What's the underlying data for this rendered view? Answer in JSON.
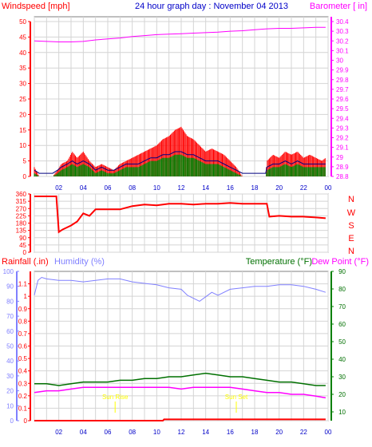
{
  "header": {
    "left_label": "Windspeed [mph]",
    "title": "24 hour graph day : November 04 2013",
    "right_label": "Barometer [ in]"
  },
  "lower_header": {
    "rainfall_label": "Rainfall (.in)",
    "humidity_label": "Humidity (%)",
    "temperature_label": "Temperature (°F)",
    "dewpoint_label": "Dew Point (°F)"
  },
  "wind_dir_letters": [
    "N",
    "W",
    "S",
    "E",
    "N"
  ],
  "sun_rise_label": "Sun Rise",
  "sun_set_label": "Sun Set",
  "colors": {
    "frame": "#808080",
    "grid": "#d4d4d4",
    "red": "#ff0000",
    "blue_title": "#0000c8",
    "magenta": "#ff00ff",
    "green": "#008000",
    "dark_green": "#007000",
    "humidity": "#8080ff",
    "navy": "#000080",
    "yellow": "#ffff00"
  },
  "chart_data": [
    {
      "type": "line",
      "name": "wind-and-barometer",
      "x_ticks": [
        "02",
        "04",
        "06",
        "08",
        "10",
        "12",
        "14",
        "16",
        "18",
        "20",
        "22",
        "00"
      ],
      "xlim": [
        0,
        24
      ],
      "y_left_ticks": [
        0,
        5,
        10,
        15,
        20,
        25,
        30,
        35,
        40,
        45,
        50
      ],
      "ylim_left": [
        0,
        50
      ],
      "y_right_ticks": [
        "28.8",
        "28.9",
        "29",
        "29.1",
        "29.2",
        "29.3",
        "29.4",
        "29.5",
        "29.6",
        "29.7",
        "29.8",
        "29.9",
        "30",
        "30.1",
        "30.2",
        "30.3",
        "30.4"
      ],
      "ylim_right": [
        28.8,
        30.4
      ],
      "grid": true,
      "barometer": {
        "x": [
          0,
          1,
          2,
          3,
          4,
          5,
          6,
          7,
          8,
          9,
          10,
          11,
          12,
          13,
          14,
          15,
          16,
          17,
          18,
          19,
          20,
          21,
          22,
          23,
          23.8
        ],
        "y": [
          30.2,
          30.195,
          30.19,
          30.19,
          30.195,
          30.21,
          30.22,
          30.23,
          30.245,
          30.255,
          30.265,
          30.27,
          30.275,
          30.28,
          30.285,
          30.29,
          30.3,
          30.305,
          30.315,
          30.325,
          30.33,
          30.33,
          30.335,
          30.34,
          30.34
        ]
      },
      "wind_gust": {
        "x": [
          0,
          0.4,
          0.6,
          1.5,
          1.9,
          2.2,
          2.7,
          3.1,
          3.5,
          4.0,
          4.5,
          5.0,
          5.5,
          6.0,
          6.5,
          7.0,
          7.5,
          8.0,
          8.5,
          9.0,
          9.5,
          10.0,
          10.5,
          11.0,
          11.5,
          12.0,
          12.5,
          13.0,
          13.5,
          14.0,
          14.5,
          15.0,
          15.5,
          16.0,
          16.5,
          17.0,
          18.0,
          18.9,
          19.0,
          19.5,
          20.0,
          20.5,
          21.0,
          21.5,
          22.0,
          22.5,
          23.0,
          23.5,
          23.8
        ],
        "y": [
          3,
          0,
          0,
          0,
          2,
          4,
          5,
          8,
          6,
          8,
          5,
          3,
          4,
          3,
          2,
          4,
          5,
          6,
          7,
          8,
          9,
          10,
          12,
          13,
          15,
          16,
          13,
          12,
          10,
          8,
          9,
          8,
          7,
          5,
          3,
          0,
          0,
          0,
          5,
          7,
          6,
          8,
          7,
          8,
          6,
          7,
          6,
          5,
          6
        ]
      },
      "wind_avg": {
        "x": [
          0,
          0.4,
          0.6,
          1.5,
          1.9,
          2.2,
          2.7,
          3.1,
          3.5,
          4.0,
          4.5,
          5.0,
          5.5,
          6.0,
          6.5,
          7.0,
          7.5,
          8.0,
          8.5,
          9.0,
          9.5,
          10.0,
          10.5,
          11.0,
          11.5,
          12.0,
          12.5,
          13.0,
          13.5,
          14.0,
          14.5,
          15.0,
          15.5,
          16.0,
          16.5,
          17.0,
          18.0,
          18.9,
          19.0,
          19.5,
          20.0,
          20.5,
          21.0,
          21.5,
          22.0,
          22.5,
          23.0,
          23.5,
          23.8
        ],
        "y": [
          1,
          0,
          0,
          0,
          1,
          2,
          3,
          4,
          3,
          4,
          3,
          1,
          2,
          1,
          1,
          2,
          3,
          3,
          3,
          4,
          5,
          5,
          6,
          6,
          7,
          7,
          6,
          6,
          5,
          4,
          4,
          4,
          3,
          2,
          1,
          0,
          0,
          0,
          2,
          3,
          3,
          4,
          3,
          4,
          3,
          3,
          3,
          3,
          3
        ]
      }
    },
    {
      "type": "line",
      "name": "wind-direction",
      "y_left_ticks": [
        0,
        45,
        90,
        135,
        180,
        225,
        270,
        315,
        360
      ],
      "ylim": [
        0,
        360
      ],
      "x": [
        0,
        1.8,
        2.0,
        2.3,
        3.0,
        3.5,
        4.0,
        4.5,
        5.0,
        6.0,
        7.0,
        8.0,
        9.0,
        10.0,
        11.0,
        12.0,
        13.0,
        14.0,
        15.0,
        16.0,
        17.0,
        18.0,
        19.0,
        19.2,
        20.0,
        21.0,
        22.0,
        23.0,
        23.8
      ],
      "y": [
        345,
        345,
        125,
        140,
        165,
        190,
        240,
        225,
        265,
        265,
        265,
        285,
        295,
        290,
        300,
        300,
        295,
        300,
        300,
        305,
        300,
        300,
        300,
        220,
        225,
        220,
        220,
        215,
        210
      ]
    },
    {
      "type": "line",
      "name": "rain-humidity-temperature",
      "x_ticks": [
        "02",
        "04",
        "06",
        "08",
        "10",
        "12",
        "14",
        "16",
        "18",
        "20",
        "22",
        "00"
      ],
      "xlim": [
        0,
        24
      ],
      "y_left_ticks": [
        "0",
        "0.1",
        "0.2",
        "0.3",
        "0.4",
        "0.5",
        "0.6",
        "0.7",
        "0.8",
        "0.9",
        "1",
        "1.1"
      ],
      "ylim_left_rain": [
        0,
        1.2
      ],
      "y_left_humidity_ticks": [
        0,
        10,
        20,
        30,
        40,
        50,
        60,
        70,
        80,
        90,
        100
      ],
      "ylim_humidity": [
        0,
        100
      ],
      "y_right_ticks": [
        10,
        20,
        30,
        40,
        50,
        60,
        70,
        80,
        90
      ],
      "ylim_right": [
        5,
        90
      ],
      "sun_rise_x": 6.6,
      "sun_set_x": 16.5,
      "humidity": {
        "x": [
          0,
          0.3,
          0.6,
          1,
          2,
          3,
          4,
          5,
          6,
          7,
          8,
          9,
          10,
          11,
          12,
          12.5,
          13,
          13.5,
          14,
          14.5,
          15,
          16,
          17,
          18,
          19,
          20,
          21,
          22,
          23,
          23.8
        ],
        "y": [
          84,
          94,
          96,
          95,
          94,
          94,
          93,
          94,
          95,
          95,
          93,
          92,
          91,
          89,
          88,
          84,
          82,
          80,
          83,
          86,
          84,
          88,
          89,
          90,
          90,
          91,
          91,
          90,
          88,
          86
        ]
      },
      "temperature": {
        "x": [
          0,
          1,
          2,
          3,
          4,
          5,
          6,
          7,
          8,
          9,
          10,
          11,
          12,
          13,
          14,
          15,
          16,
          17,
          18,
          19,
          20,
          21,
          22,
          23,
          23.8
        ],
        "y": [
          26,
          26,
          25,
          26,
          27,
          27,
          27,
          28,
          28,
          29,
          29,
          30,
          30,
          31,
          32,
          31,
          30,
          30,
          29,
          28,
          27,
          27,
          26,
          25,
          25
        ]
      },
      "dew_point": {
        "x": [
          0,
          1,
          2,
          3,
          4,
          5,
          6,
          7,
          8,
          9,
          10,
          11,
          12,
          13,
          14,
          15,
          16,
          17,
          18,
          19,
          20,
          21,
          22,
          23,
          23.8
        ],
        "y": [
          21,
          22,
          22,
          23,
          24,
          24,
          24,
          24,
          24,
          24,
          24,
          24,
          23,
          24,
          24,
          24,
          24,
          23,
          22,
          21,
          21,
          20,
          20,
          19,
          18
        ]
      },
      "rainfall": {
        "x": [
          0,
          10.5,
          10.6,
          23.8
        ],
        "y": [
          0,
          0,
          0.01,
          0.01
        ]
      }
    }
  ]
}
